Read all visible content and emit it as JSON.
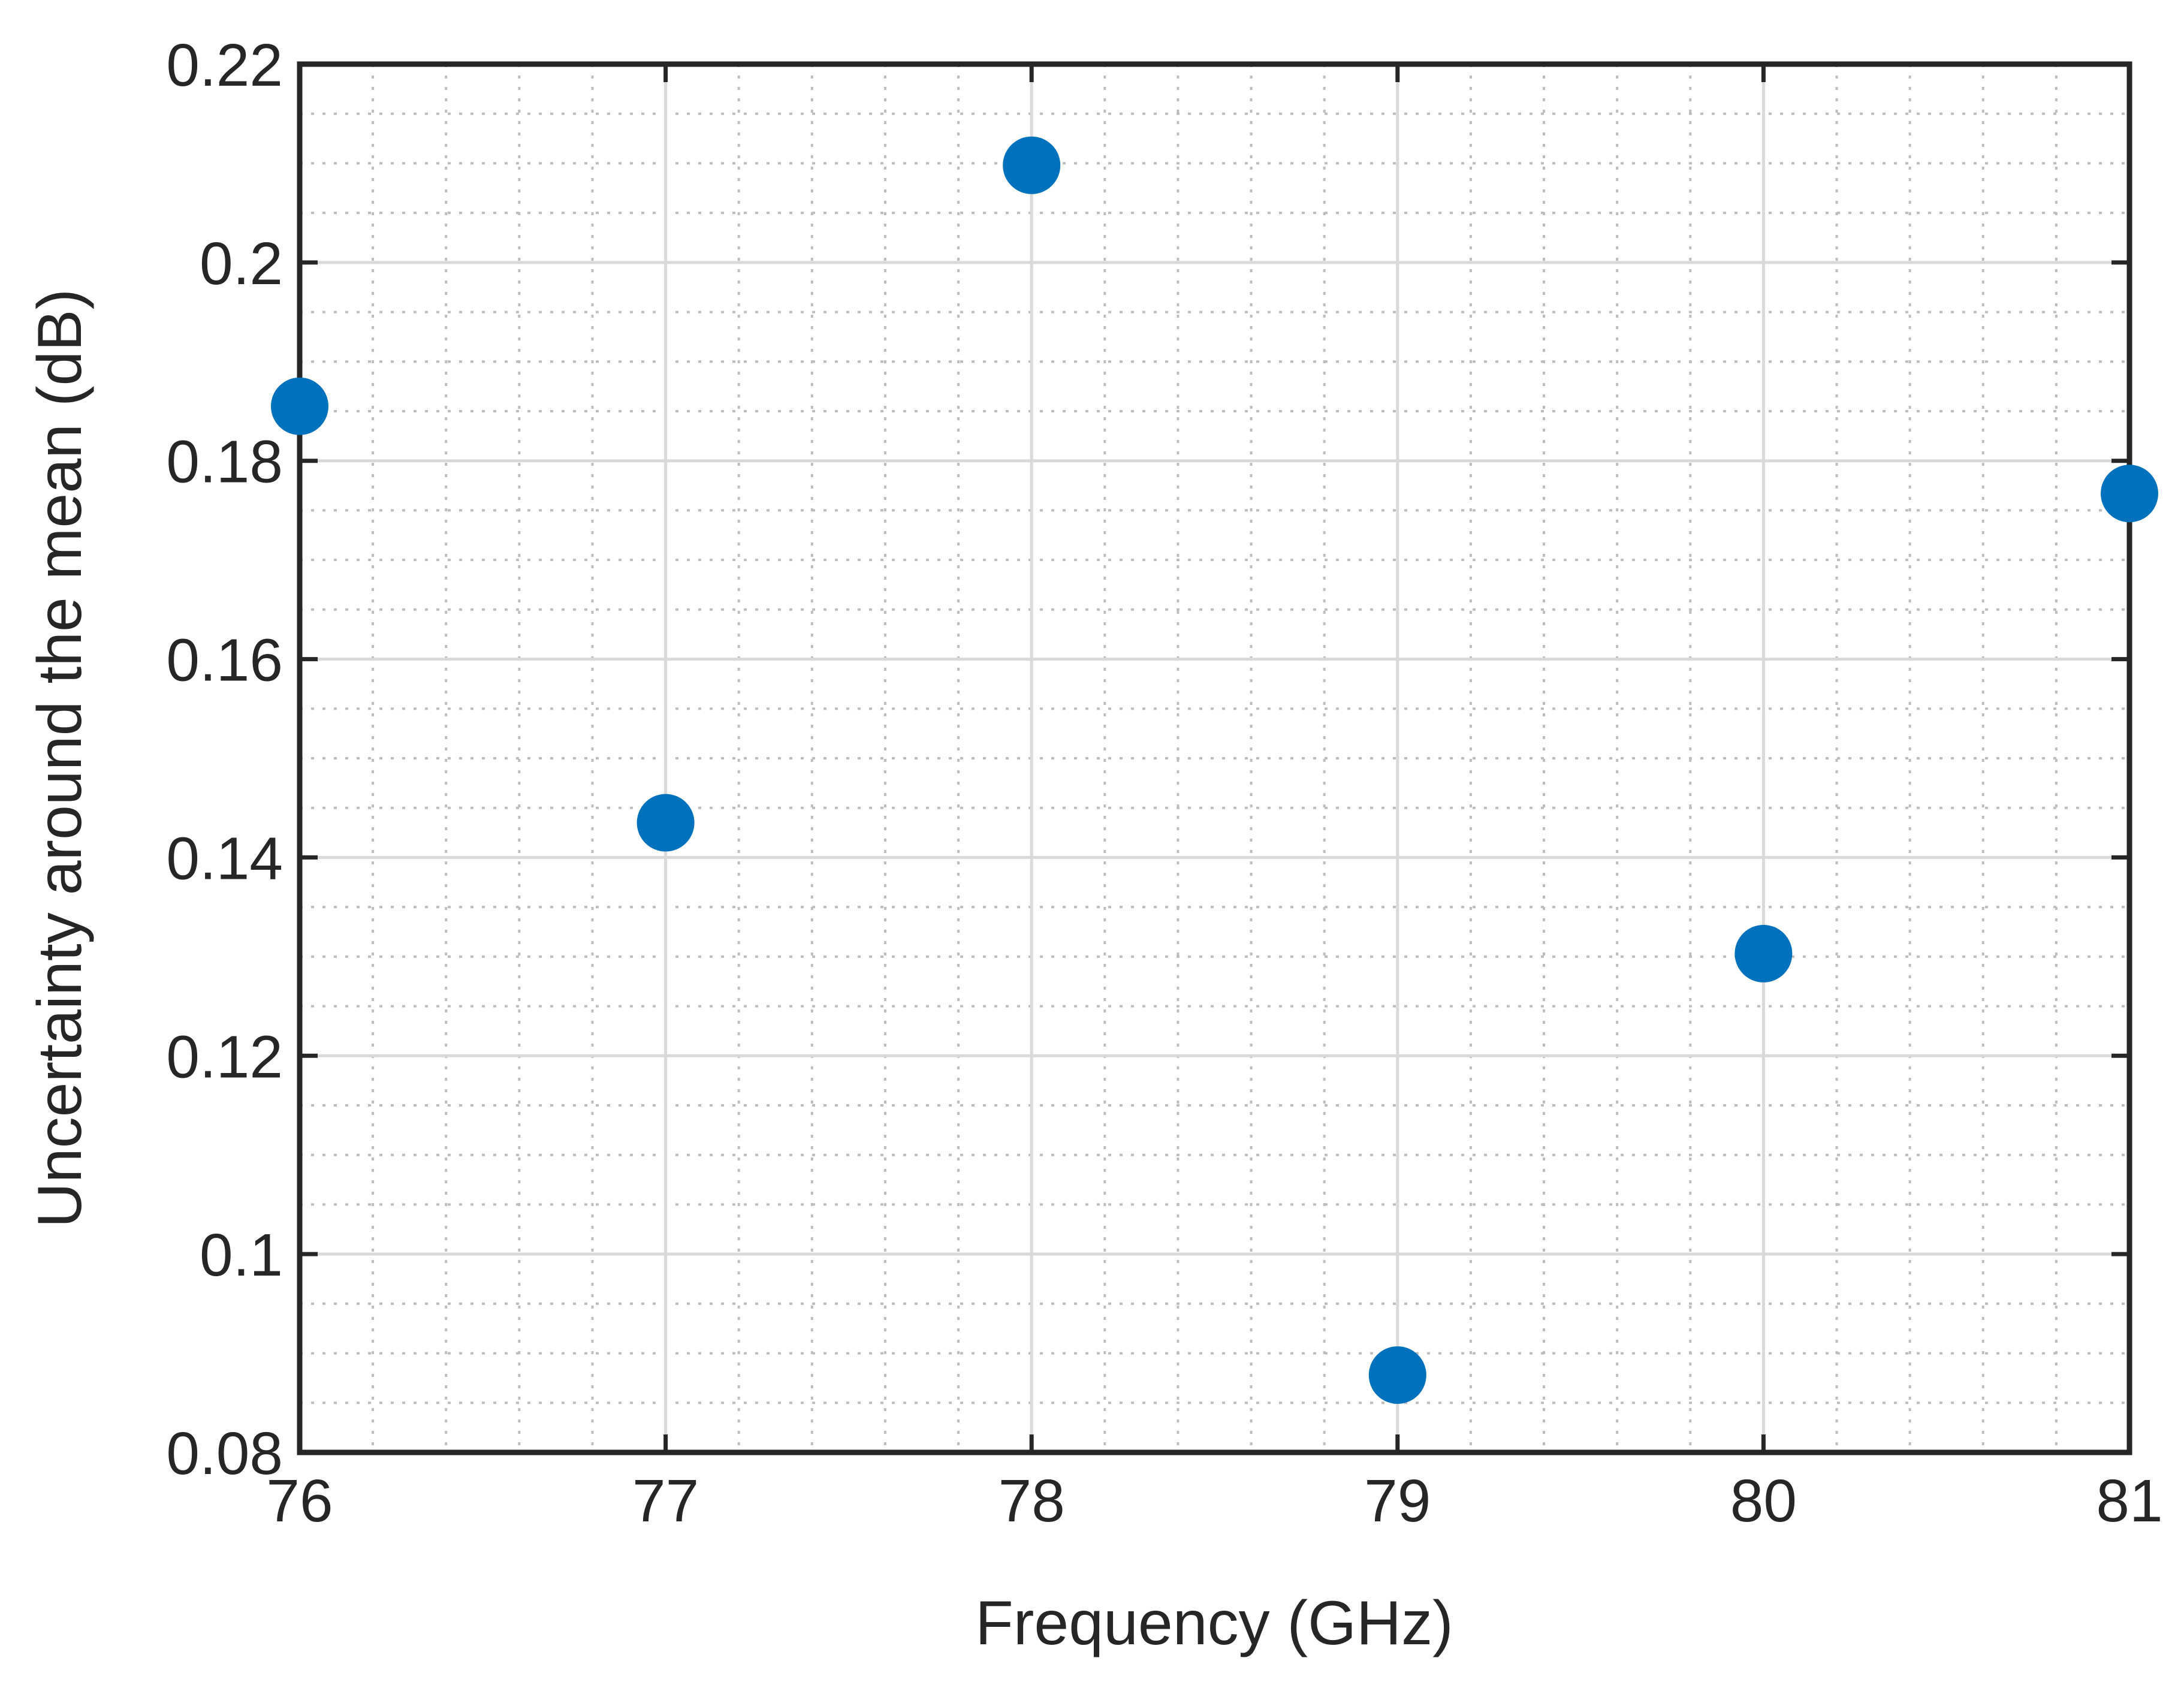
{
  "chart_data": {
    "type": "scatter",
    "title": "",
    "xlabel": "Frequency (GHz)",
    "ylabel": "Uncertainty around the mean (dB)",
    "xlim": [
      76,
      81
    ],
    "ylim": [
      0.08,
      0.22
    ],
    "x_ticks": [
      76,
      77,
      78,
      79,
      80,
      81
    ],
    "x_tick_labels": [
      "76",
      "77",
      "78",
      "79",
      "80",
      "81"
    ],
    "y_ticks": [
      0.08,
      0.1,
      0.12,
      0.14,
      0.16,
      0.18,
      0.2,
      0.22
    ],
    "y_tick_labels": [
      "0.08",
      "0.1",
      "0.12",
      "0.14",
      "0.16",
      "0.18",
      "0.2",
      "0.22"
    ],
    "grid": true,
    "minor_grid": true,
    "marker_color": "#0072BD",
    "series": [
      {
        "x": [
          76,
          77,
          78,
          79,
          80,
          81
        ],
        "y": [
          0.1855,
          0.1435,
          0.2098,
          0.0878,
          0.1303,
          0.1767
        ]
      }
    ]
  }
}
